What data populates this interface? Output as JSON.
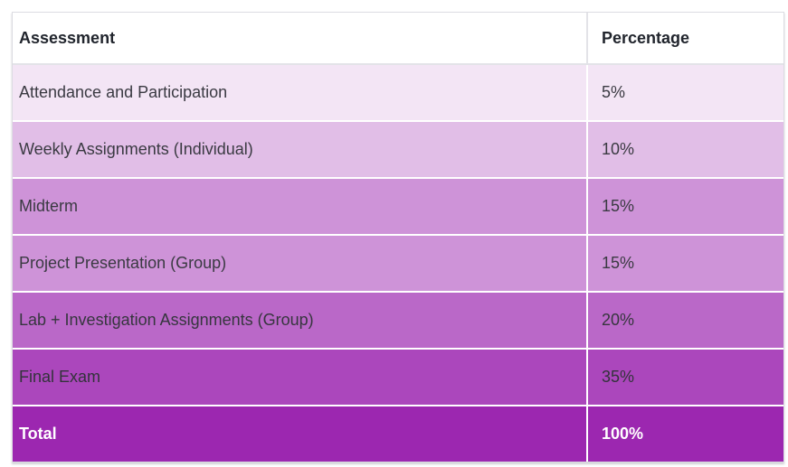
{
  "table": {
    "columns": [
      {
        "label": "Assessment"
      },
      {
        "label": "Percentage"
      }
    ],
    "rows": [
      {
        "assessment": "Attendance and Participation",
        "percentage": "5%",
        "bg": "#F3E5F5",
        "fg": "#3A3A42",
        "emphasis": false
      },
      {
        "assessment": "Weekly Assignments (Individual)",
        "percentage": "10%",
        "bg": "#E1BEE7",
        "fg": "#3A3A42",
        "emphasis": false
      },
      {
        "assessment": "Midterm",
        "percentage": "15%",
        "bg": "#CE93D8",
        "fg": "#3A3A42",
        "emphasis": false
      },
      {
        "assessment": "Project Presentation (Group)",
        "percentage": "15%",
        "bg": "#CE93D8",
        "fg": "#3A3A42",
        "emphasis": false
      },
      {
        "assessment": "Lab + Investigation Assignments (Group)",
        "percentage": "20%",
        "bg": "#BA68C8",
        "fg": "#36363E",
        "emphasis": false
      },
      {
        "assessment": "Final Exam",
        "percentage": "35%",
        "bg": "#AB47BC",
        "fg": "#33333B",
        "emphasis": false
      },
      {
        "assessment": "Total",
        "percentage": "100%",
        "bg": "#9C27B0",
        "fg": "#FFFFFF",
        "emphasis": true
      }
    ],
    "style": {
      "header_bg": "#FFFFFF",
      "header_fg": "#21252D",
      "table_border": "#DCDCE2",
      "row_divider": "#FFFFFF"
    }
  }
}
